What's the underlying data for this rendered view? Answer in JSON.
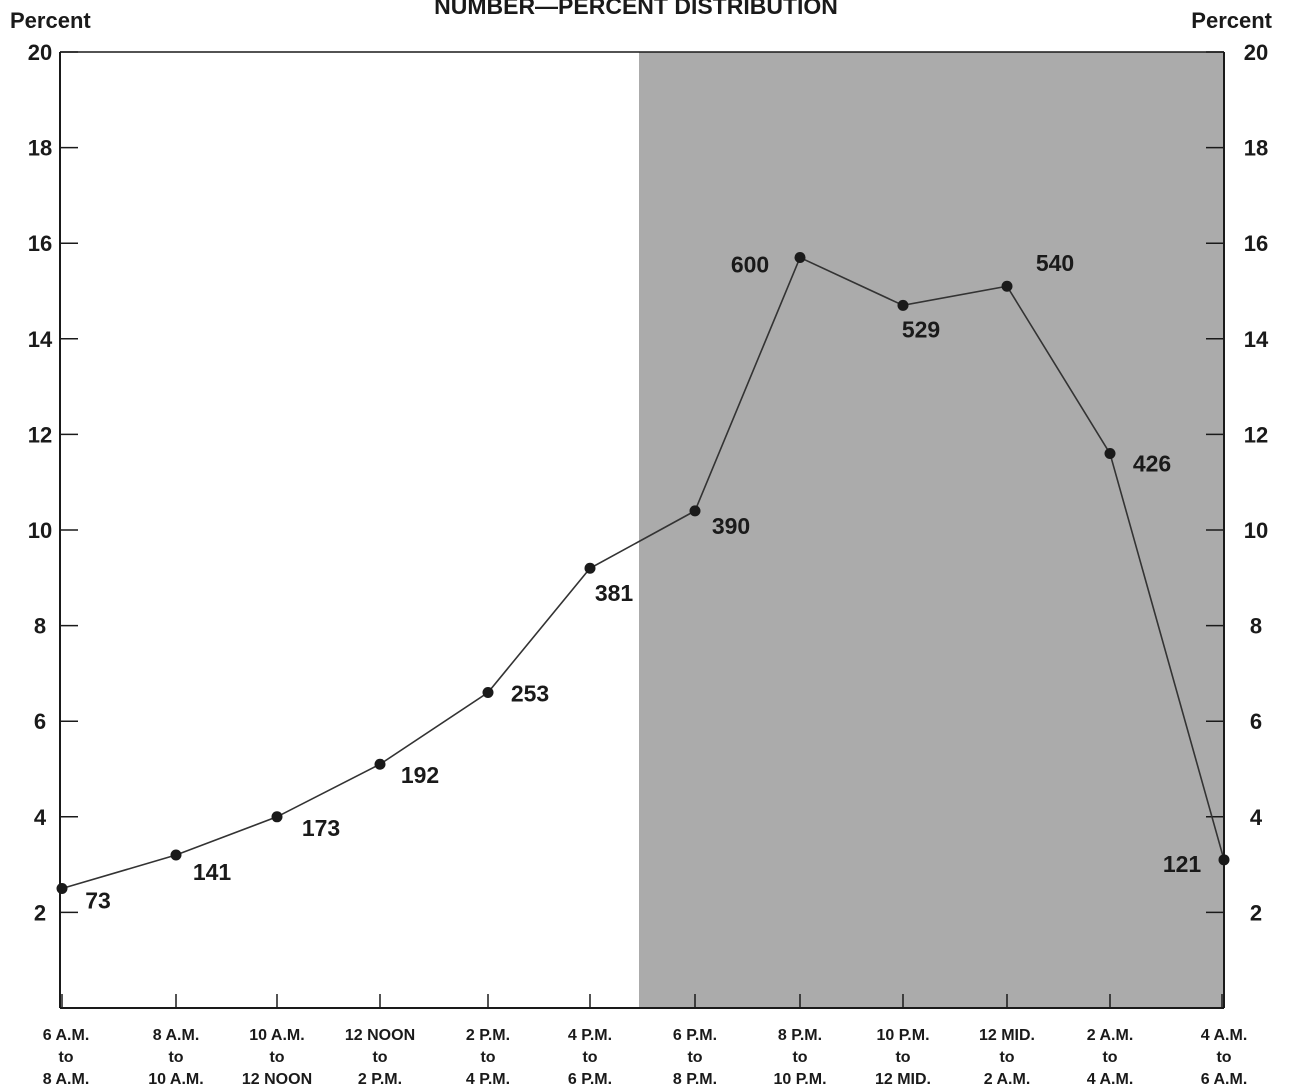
{
  "title": "NUMBER—PERCENT DISTRIBUTION",
  "left_axis_label": "Percent",
  "right_axis_label": "Percent",
  "colors": {
    "shade": "#ababab",
    "line": "#333333",
    "point": "#1a1a1a"
  },
  "chart_data": {
    "type": "line",
    "title": "NUMBER—PERCENT DISTRIBUTION",
    "ylabel": "Percent",
    "ylim": [
      0,
      20
    ],
    "y_ticks": [
      2,
      4,
      6,
      8,
      10,
      12,
      14,
      16,
      18,
      20
    ],
    "right_y_ticks": [
      "2",
      "4",
      "6",
      "8",
      "10",
      "12",
      "14",
      "16",
      "18",
      "20"
    ],
    "grid": false,
    "shaded_range": [
      "6 P.M. to 8 P.M.",
      "4 A.M. to 6 A.M."
    ],
    "categories": [
      [
        "6 A.M.",
        "to",
        "8 A.M."
      ],
      [
        "8 A.M.",
        "to",
        "10 A.M."
      ],
      [
        "10 A.M.",
        "to",
        "12 NOON"
      ],
      [
        "12 NOON",
        "to",
        "2 P.M."
      ],
      [
        "2 P.M.",
        "to",
        "4 P.M."
      ],
      [
        "4 P.M.",
        "to",
        "6 P.M."
      ],
      [
        "6 P.M.",
        "to",
        "8 P.M."
      ],
      [
        "8 P.M.",
        "to",
        "10 P.M."
      ],
      [
        "10 P.M.",
        "to",
        "12 MID."
      ],
      [
        "12 MID.",
        "to",
        "2 A.M."
      ],
      [
        "2 A.M.",
        "to",
        "4 A.M."
      ],
      [
        "4 A.M.",
        "to",
        "6 A.M."
      ]
    ],
    "values": [
      2.5,
      3.2,
      4.0,
      5.1,
      6.6,
      9.2,
      10.4,
      15.7,
      14.7,
      15.1,
      11.6,
      3.1
    ],
    "data_labels": [
      "73",
      "141",
      "173",
      "192",
      "253",
      "381",
      "390",
      "600",
      "529",
      "540",
      "426",
      "121"
    ]
  }
}
